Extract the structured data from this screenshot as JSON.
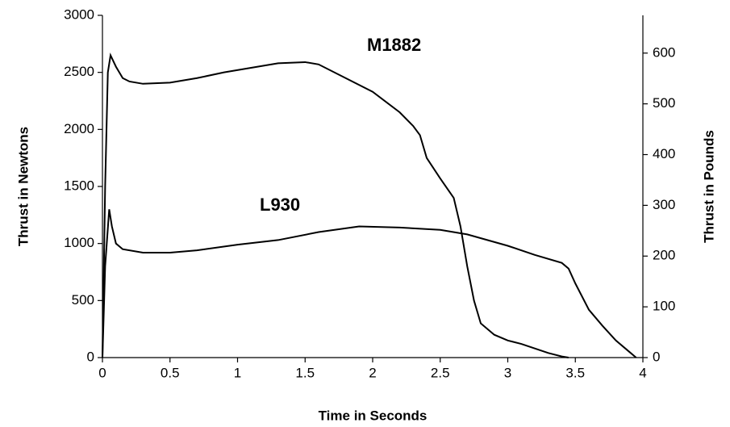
{
  "chart_data": {
    "type": "line",
    "x_label": "Time in Seconds",
    "y_label": "Thrust in Newtons",
    "y2_label": "Thrust in Pounds",
    "annotations": [
      "M1882",
      "L930"
    ],
    "xlim": [
      0,
      4
    ],
    "xticks": [
      0,
      0.5,
      1,
      1.5,
      2,
      2.5,
      3,
      3.5,
      4
    ],
    "ylim": [
      0,
      3000
    ],
    "yticks": [
      0,
      500,
      1000,
      1500,
      2000,
      2500,
      3000
    ],
    "y2lim": [
      0,
      674.4
    ],
    "y2ticks": [
      0,
      100,
      200,
      300,
      400,
      500,
      600
    ],
    "grid": false,
    "series": [
      {
        "name": "M1882",
        "color": "#000000",
        "x": [
          0,
          0.02,
          0.04,
          0.06,
          0.08,
          0.1,
          0.15,
          0.2,
          0.3,
          0.5,
          0.7,
          0.9,
          1.1,
          1.3,
          1.5,
          1.6,
          1.8,
          2.0,
          2.2,
          2.3,
          2.35,
          2.4,
          2.5,
          2.6,
          2.65,
          2.7,
          2.75,
          2.8,
          2.9,
          3.0,
          3.1,
          3.2,
          3.3,
          3.4,
          3.45
        ],
        "values": [
          0,
          1500,
          2500,
          2650,
          2600,
          2550,
          2450,
          2420,
          2400,
          2410,
          2450,
          2500,
          2540,
          2580,
          2590,
          2570,
          2450,
          2330,
          2150,
          2030,
          1950,
          1750,
          1570,
          1400,
          1150,
          800,
          500,
          300,
          200,
          150,
          120,
          80,
          40,
          10,
          0
        ]
      },
      {
        "name": "L930",
        "color": "#000000",
        "x": [
          0,
          0.02,
          0.05,
          0.07,
          0.1,
          0.15,
          0.3,
          0.5,
          0.7,
          1.0,
          1.3,
          1.6,
          1.9,
          2.2,
          2.5,
          2.7,
          3.0,
          3.2,
          3.4,
          3.45,
          3.5,
          3.6,
          3.7,
          3.8,
          3.9,
          3.95
        ],
        "values": [
          0,
          800,
          1300,
          1150,
          1000,
          950,
          920,
          920,
          940,
          990,
          1030,
          1100,
          1150,
          1140,
          1120,
          1080,
          980,
          900,
          830,
          780,
          650,
          420,
          280,
          150,
          50,
          0
        ]
      }
    ]
  }
}
